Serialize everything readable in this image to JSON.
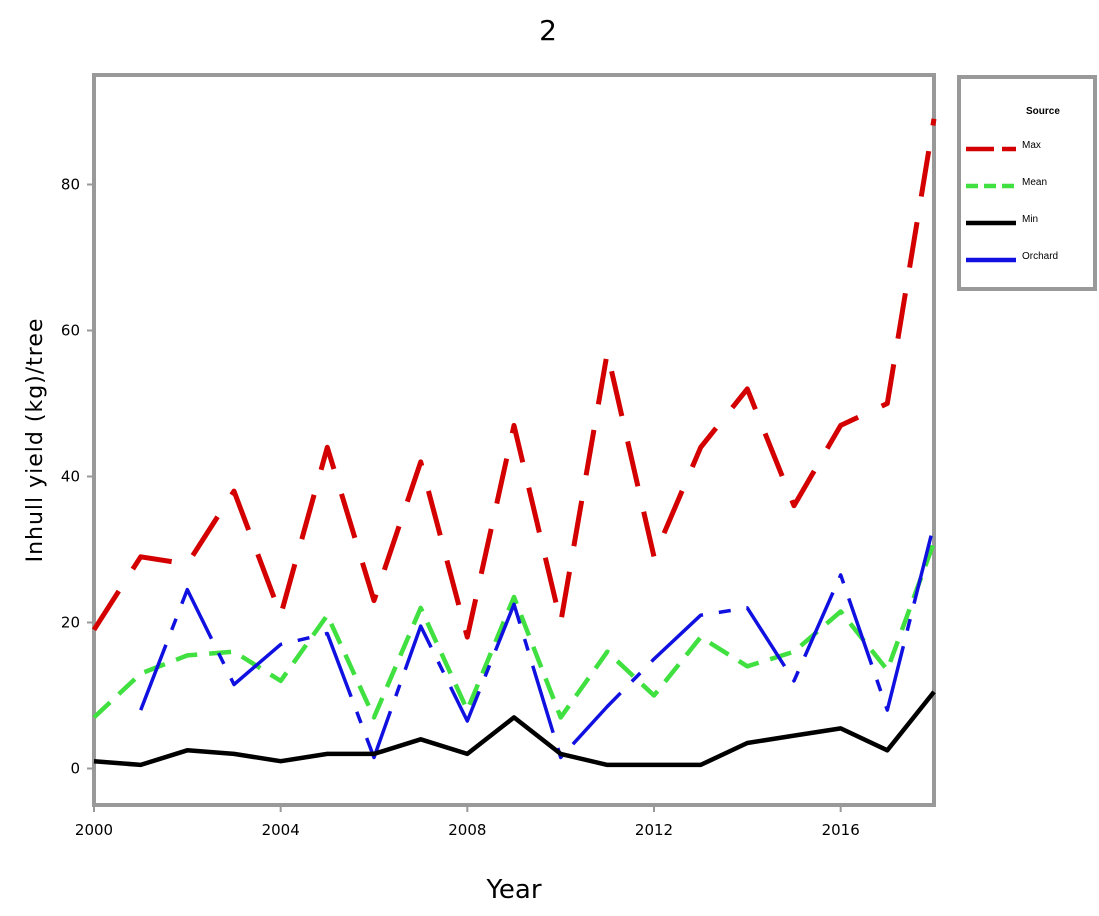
{
  "chart_data": {
    "type": "line",
    "title": "2",
    "xlabel": "Year",
    "ylabel": "Inhull yield (kg)/tree",
    "xlim": [
      2000,
      2018
    ],
    "ylim": [
      -5,
      95
    ],
    "xticks": [
      2000,
      2004,
      2008,
      2012,
      2016
    ],
    "yticks": [
      0,
      20,
      40,
      60,
      80
    ],
    "grid": false,
    "legend": {
      "title": "Source",
      "placement": "outside-top-right"
    },
    "x": [
      2000,
      2001,
      2002,
      2003,
      2004,
      2005,
      2006,
      2007,
      2008,
      2009,
      2010,
      2011,
      2012,
      2013,
      2014,
      2015,
      2016,
      2017,
      2018
    ],
    "series": [
      {
        "name": "Max",
        "color": "#d40000",
        "dash": "long-dash",
        "values": [
          19,
          29,
          28,
          38,
          21,
          44,
          23,
          42,
          18,
          47,
          20,
          57,
          29,
          44,
          52,
          36,
          47,
          50,
          89
        ]
      },
      {
        "name": "Mean",
        "color": "#3fe03f",
        "dash": "dash",
        "values": [
          7,
          13,
          15.5,
          16,
          12,
          21,
          7,
          22,
          8,
          23.5,
          7,
          16,
          10,
          18,
          14,
          16,
          21.5,
          13.5,
          31
        ]
      },
      {
        "name": "Min",
        "color": "#000000",
        "dash": "solid",
        "values": [
          1,
          0.5,
          2.5,
          2,
          1,
          2,
          2,
          4,
          2,
          7,
          2,
          0.5,
          0.5,
          0.5,
          3.5,
          4.5,
          5.5,
          2.5,
          10.5
        ]
      },
      {
        "name": "Orchard",
        "color": "#1010e0",
        "dash": "dash-dot",
        "values": [
          null,
          8,
          24.5,
          11.5,
          17,
          18.5,
          1.5,
          19.5,
          6.5,
          22.5,
          1.5,
          8.5,
          15,
          21,
          22,
          12,
          26.5,
          8,
          33.5
        ]
      }
    ]
  }
}
